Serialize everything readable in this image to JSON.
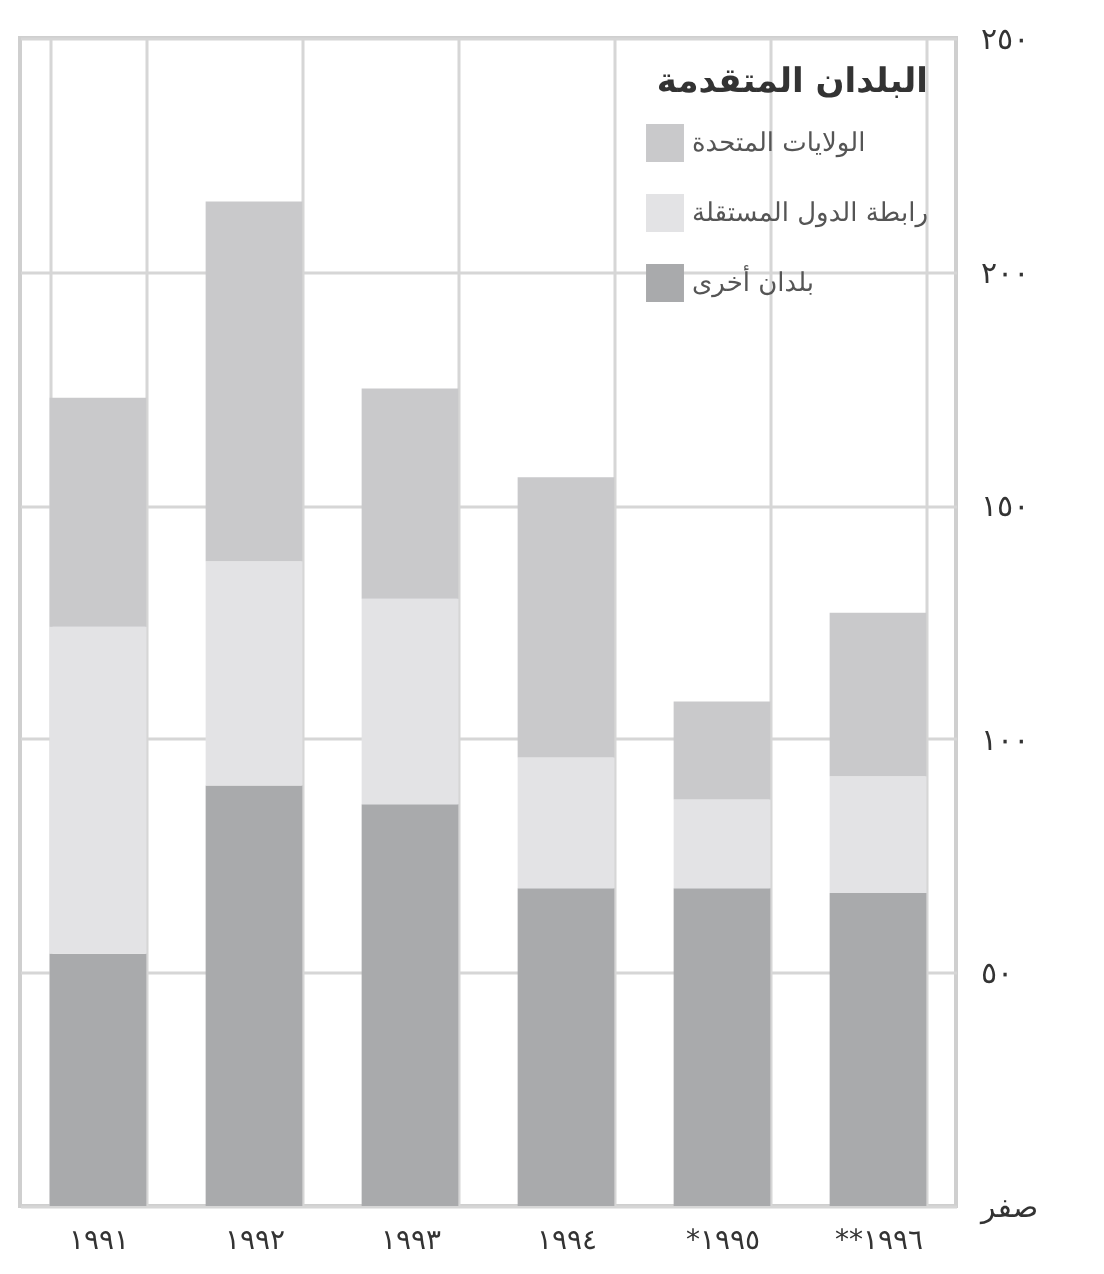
{
  "chart_data": {
    "type": "bar",
    "stacked": true,
    "legend_title": "البلدان المتقدمة",
    "categories": [
      "١٩٩١",
      "١٩٩٢",
      "١٩٩٣",
      "١٩٩٤",
      "*١٩٩٥",
      "**١٩٩٦"
    ],
    "series": [
      {
        "name": "بلدان أخرى",
        "color": "#a9aaac",
        "values": [
          54,
          90,
          86,
          68,
          68,
          67
        ]
      },
      {
        "name": "رابطة الدول المستقلة",
        "color": "#e3e3e5",
        "values": [
          70,
          48,
          44,
          28,
          19,
          25
        ]
      },
      {
        "name": "الولايات المتحدة",
        "color": "#c9c9cb",
        "values": [
          49,
          77,
          45,
          60,
          21,
          35
        ]
      }
    ],
    "ylim": [
      0,
      250
    ],
    "yticks": [
      {
        "value": 0,
        "label": "صفر"
      },
      {
        "value": 50,
        "label": "٥٠"
      },
      {
        "value": 100,
        "label": "١٠٠"
      },
      {
        "value": 150,
        "label": "١٥٠"
      },
      {
        "value": 200,
        "label": "٢٠٠"
      },
      {
        "value": 250,
        "label": "٢٥٠"
      }
    ],
    "grid": true,
    "legend": "top right"
  }
}
